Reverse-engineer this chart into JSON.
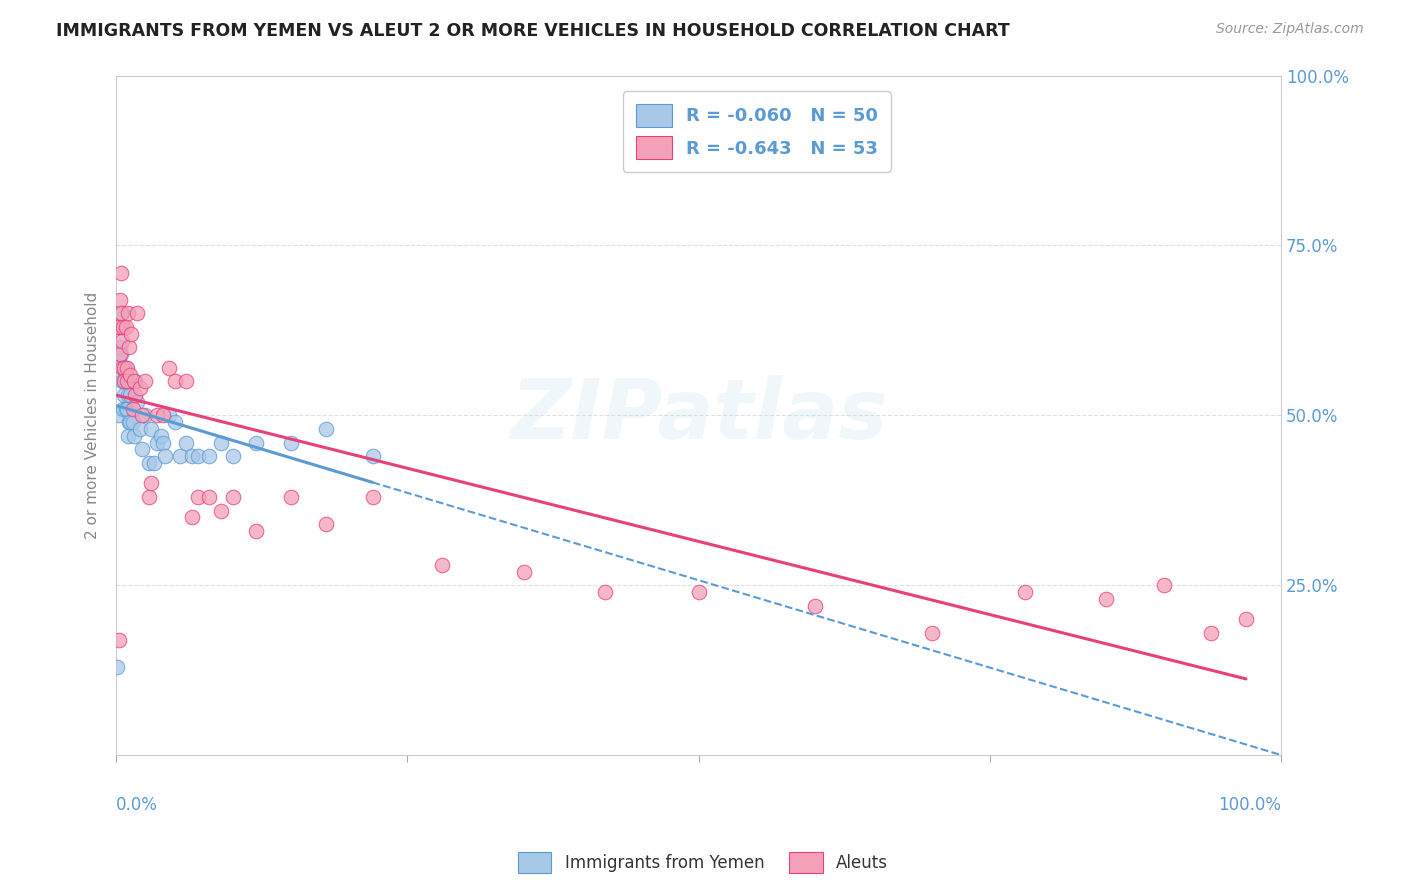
{
  "title": "IMMIGRANTS FROM YEMEN VS ALEUT 2 OR MORE VEHICLES IN HOUSEHOLD CORRELATION CHART",
  "source": "Source: ZipAtlas.com",
  "ylabel": "2 or more Vehicles in Household",
  "legend_label1": "R = -0.060   N = 50",
  "legend_label2": "R = -0.643   N = 53",
  "legend_label_bottom1": "Immigrants from Yemen",
  "legend_label_bottom2": "Aleuts",
  "color_yemen": "#a8c8e8",
  "color_aleut": "#f4a0b8",
  "color_trendline_yemen": "#5b9bd5",
  "color_trendline_aleut": "#e8407a",
  "color_title": "#222222",
  "color_source": "#999999",
  "color_axis_blue": "#5b9bd5",
  "color_axis_gray": "#888888",
  "background_color": "#ffffff",
  "grid_color": "#e0e0e0",
  "watermark_text": "ZIPatlas",
  "xlim": [
    0,
    1.0
  ],
  "ylim": [
    0,
    1.0
  ],
  "yemen_x": [
    0.001,
    0.002,
    0.002,
    0.003,
    0.003,
    0.004,
    0.004,
    0.005,
    0.005,
    0.006,
    0.006,
    0.007,
    0.007,
    0.008,
    0.008,
    0.009,
    0.009,
    0.01,
    0.01,
    0.011,
    0.012,
    0.012,
    0.013,
    0.014,
    0.015,
    0.016,
    0.018,
    0.02,
    0.022,
    0.025,
    0.028,
    0.03,
    0.032,
    0.035,
    0.038,
    0.04,
    0.042,
    0.045,
    0.05,
    0.055,
    0.06,
    0.065,
    0.07,
    0.08,
    0.09,
    0.1,
    0.12,
    0.15,
    0.18,
    0.22
  ],
  "yemen_y": [
    0.13,
    0.5,
    0.58,
    0.63,
    0.6,
    0.63,
    0.59,
    0.65,
    0.55,
    0.57,
    0.51,
    0.55,
    0.53,
    0.57,
    0.51,
    0.55,
    0.51,
    0.47,
    0.53,
    0.49,
    0.53,
    0.49,
    0.55,
    0.49,
    0.47,
    0.55,
    0.52,
    0.48,
    0.45,
    0.5,
    0.43,
    0.48,
    0.43,
    0.46,
    0.47,
    0.46,
    0.44,
    0.5,
    0.49,
    0.44,
    0.46,
    0.44,
    0.44,
    0.44,
    0.46,
    0.44,
    0.46,
    0.46,
    0.48,
    0.44
  ],
  "aleut_x": [
    0.001,
    0.002,
    0.002,
    0.003,
    0.003,
    0.004,
    0.004,
    0.005,
    0.005,
    0.006,
    0.007,
    0.007,
    0.008,
    0.009,
    0.009,
    0.01,
    0.011,
    0.012,
    0.013,
    0.014,
    0.015,
    0.016,
    0.018,
    0.02,
    0.022,
    0.025,
    0.028,
    0.03,
    0.035,
    0.04,
    0.045,
    0.05,
    0.06,
    0.065,
    0.07,
    0.08,
    0.09,
    0.1,
    0.12,
    0.15,
    0.18,
    0.22,
    0.28,
    0.35,
    0.42,
    0.5,
    0.6,
    0.7,
    0.78,
    0.85,
    0.9,
    0.94,
    0.97
  ],
  "aleut_y": [
    0.63,
    0.17,
    0.63,
    0.59,
    0.67,
    0.65,
    0.71,
    0.61,
    0.57,
    0.63,
    0.57,
    0.55,
    0.63,
    0.57,
    0.55,
    0.65,
    0.6,
    0.56,
    0.62,
    0.51,
    0.55,
    0.53,
    0.65,
    0.54,
    0.5,
    0.55,
    0.38,
    0.4,
    0.5,
    0.5,
    0.57,
    0.55,
    0.55,
    0.35,
    0.38,
    0.38,
    0.36,
    0.38,
    0.33,
    0.38,
    0.34,
    0.38,
    0.28,
    0.27,
    0.24,
    0.24,
    0.22,
    0.18,
    0.24,
    0.23,
    0.25,
    0.18,
    0.2
  ]
}
